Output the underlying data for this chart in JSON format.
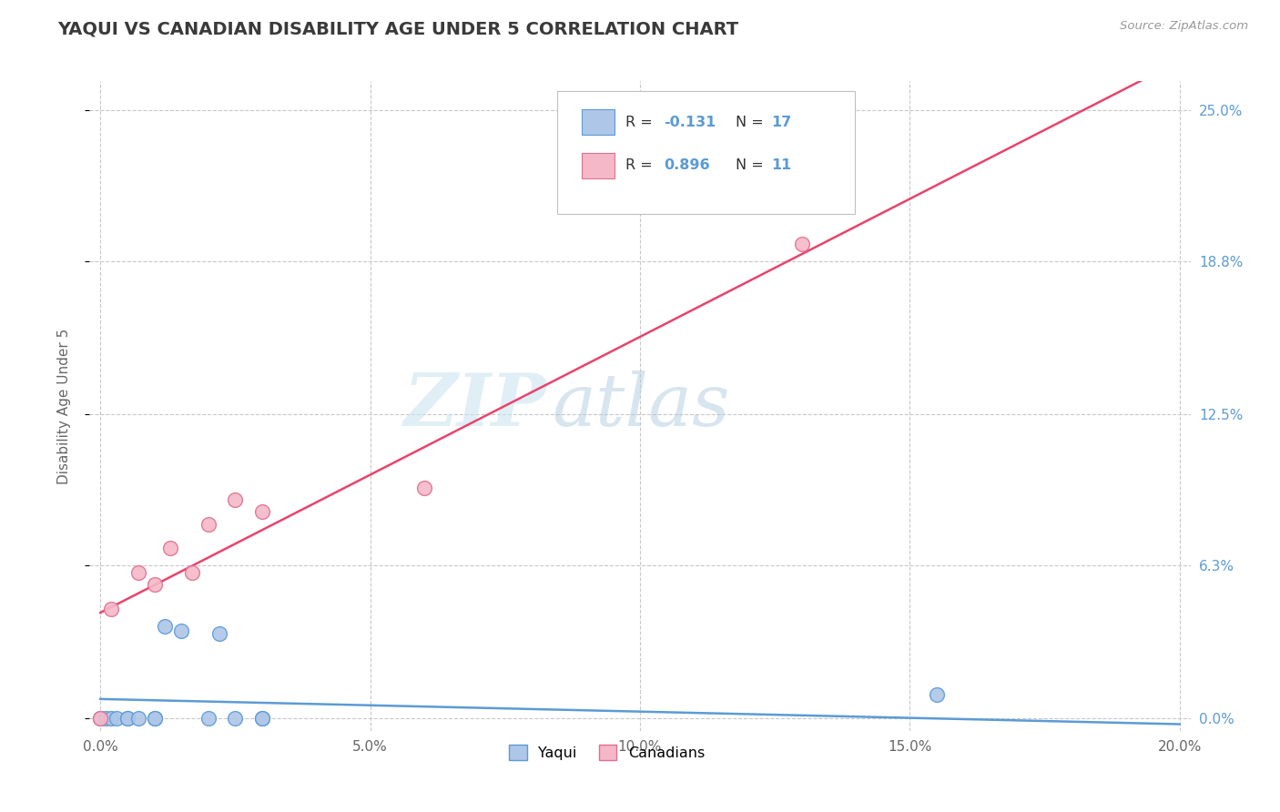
{
  "title": "YAQUI VS CANADIAN DISABILITY AGE UNDER 5 CORRELATION CHART",
  "source": "Source: ZipAtlas.com",
  "ylabel": "Disability Age Under 5",
  "xlabel_ticks": [
    "0.0%",
    "5.0%",
    "10.0%",
    "15.0%",
    "20.0%"
  ],
  "xlabel_vals": [
    0.0,
    0.05,
    0.1,
    0.15,
    0.2
  ],
  "ylabel_ticks": [
    "0.0%",
    "6.3%",
    "12.5%",
    "18.8%",
    "25.0%"
  ],
  "ylabel_vals": [
    0.0,
    0.063,
    0.125,
    0.188,
    0.25
  ],
  "xlim": [
    -0.002,
    0.202
  ],
  "ylim": [
    -0.005,
    0.262
  ],
  "yaqui_x": [
    0.0,
    0.001,
    0.002,
    0.003,
    0.005,
    0.005,
    0.007,
    0.01,
    0.01,
    0.012,
    0.015,
    0.02,
    0.022,
    0.025,
    0.03,
    0.03,
    0.155
  ],
  "yaqui_y": [
    0.0,
    0.0,
    0.0,
    0.0,
    0.0,
    0.0,
    0.0,
    0.0,
    0.0,
    0.038,
    0.036,
    0.0,
    0.035,
    0.0,
    0.0,
    0.0,
    0.01
  ],
  "canadian_x": [
    0.0,
    0.002,
    0.007,
    0.01,
    0.013,
    0.017,
    0.02,
    0.025,
    0.03,
    0.06,
    0.13
  ],
  "canadian_y": [
    0.0,
    0.045,
    0.06,
    0.055,
    0.07,
    0.06,
    0.08,
    0.09,
    0.085,
    0.095,
    0.195
  ],
  "yaqui_color": "#aec6e8",
  "yaqui_edge": "#5b9bd5",
  "canadian_color": "#f4b8c8",
  "canadian_edge": "#e07090",
  "yaqui_line_color": "#5b9bd5",
  "canadian_line_color": "#e8446c",
  "R_yaqui": -0.131,
  "N_yaqui": 17,
  "R_canadian": 0.896,
  "N_canadian": 11,
  "watermark_zip": "ZIP",
  "watermark_atlas": "atlas",
  "background": "#ffffff",
  "grid_color": "#c8c8c8"
}
